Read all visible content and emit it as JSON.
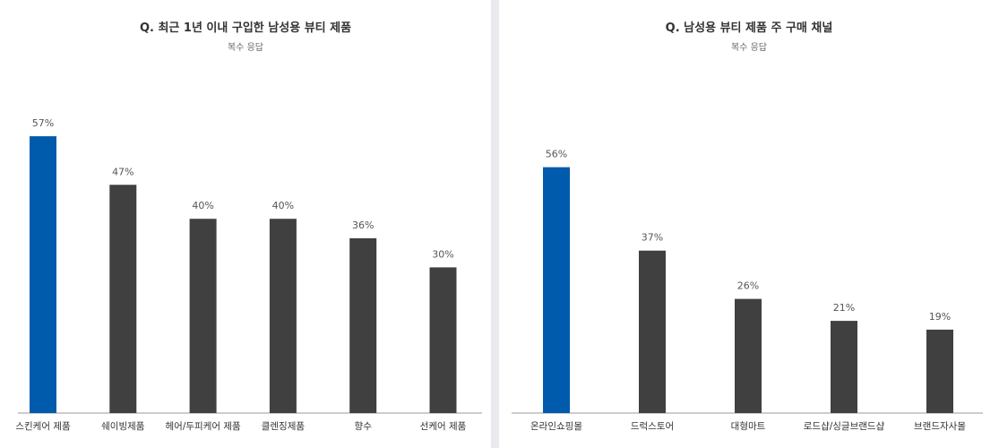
{
  "colors": {
    "highlight": "#005bac",
    "bar": "#404040",
    "axis": "#9a9a9a"
  },
  "chart_data": [
    {
      "type": "bar",
      "title": "Q. 최근 1년 이내 구입한 남성용 뷰티 제품",
      "subtitle": "복수 응답",
      "categories": [
        "스킨케어 제품",
        "쉐이빙제품",
        "헤어/두피케어 제품",
        "클렌징제품",
        "향수",
        "선케어 제품"
      ],
      "values": [
        57,
        47,
        40,
        40,
        36,
        30
      ],
      "value_labels": [
        "57%",
        "47%",
        "40%",
        "40%",
        "36%",
        "30%"
      ],
      "highlight_index": 0,
      "ylim": [
        0,
        100
      ],
      "grid": false,
      "legend": "none"
    },
    {
      "type": "bar",
      "title": "Q. 남성용 뷰티 제품 주 구매 채널",
      "subtitle": "복수 응답",
      "categories": [
        "온라인쇼핑몰",
        "드럭스토어",
        "대형마트",
        "로드샵/싱글브랜드샵",
        "브랜드자사몰"
      ],
      "values": [
        56,
        37,
        26,
        21,
        19
      ],
      "value_labels": [
        "56%",
        "37%",
        "26%",
        "21%",
        "19%"
      ],
      "highlight_index": 0,
      "ylim": [
        0,
        100
      ],
      "grid": false,
      "legend": "none"
    }
  ]
}
